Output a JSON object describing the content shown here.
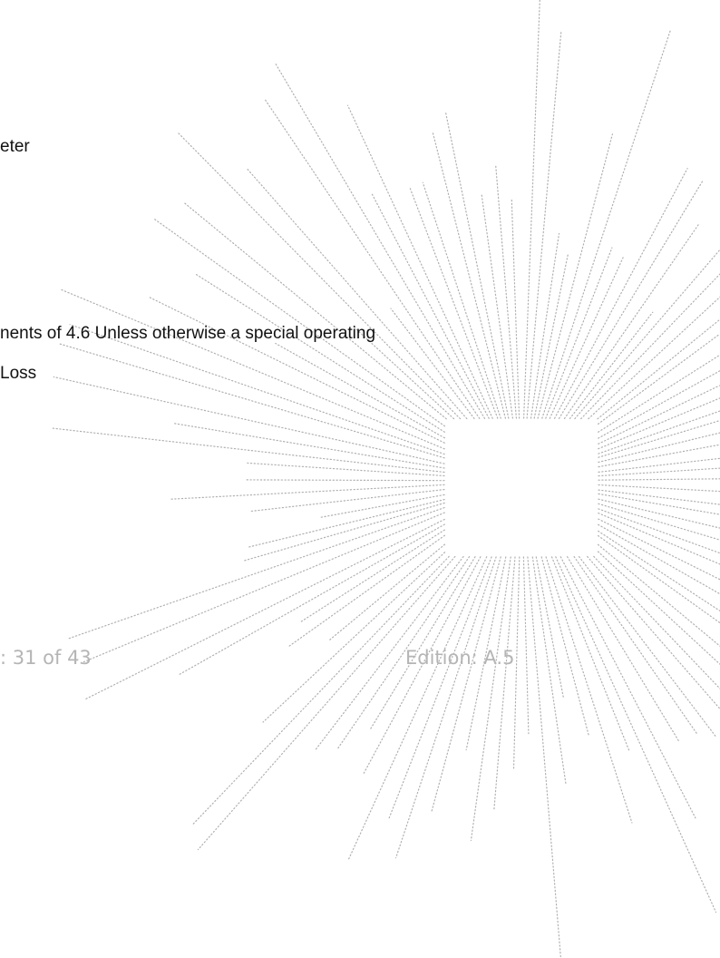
{
  "content": {
    "fragment_1": "eter",
    "fragment_2": "nents of 4.6 Unless otherwise a special operating",
    "fragment_3": "Loss"
  },
  "footer": {
    "page_number": ": 31 of 43",
    "edition": "Edition: A.5"
  },
  "colors": {
    "text": "#111111",
    "footer_text": "#b5b5b5",
    "decoration_dots": "#b0b0b0"
  }
}
